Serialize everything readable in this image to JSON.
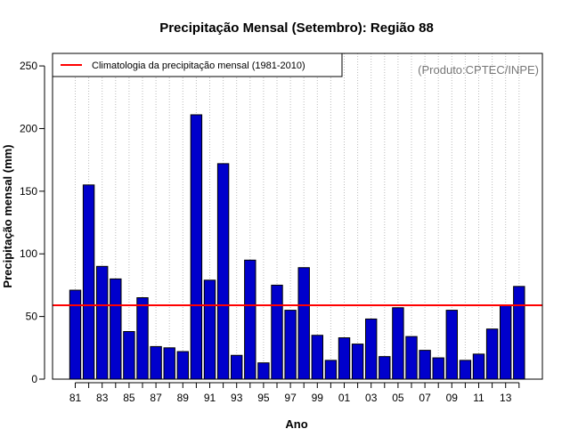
{
  "chart_data": {
    "type": "bar",
    "title": "Precipitação Mensal (Setembro): Região 88",
    "xlabel": "Ano",
    "ylabel": "Precipitação mensal (mm)",
    "ylim": [
      0,
      260
    ],
    "yticks": [
      0,
      50,
      100,
      150,
      200,
      250
    ],
    "categories": [
      "81",
      "82",
      "83",
      "84",
      "85",
      "86",
      "87",
      "88",
      "89",
      "90",
      "91",
      "92",
      "93",
      "94",
      "95",
      "96",
      "97",
      "98",
      "99",
      "00",
      "01",
      "02",
      "03",
      "04",
      "05",
      "06",
      "07",
      "08",
      "09",
      "10",
      "11",
      "12",
      "13",
      "14"
    ],
    "x_tick_labels": [
      "81",
      "83",
      "85",
      "87",
      "89",
      "91",
      "93",
      "95",
      "97",
      "99",
      "01",
      "03",
      "05",
      "07",
      "09",
      "11",
      "13"
    ],
    "values": [
      71,
      155,
      90,
      80,
      38,
      65,
      26,
      25,
      22,
      211,
      79,
      172,
      19,
      95,
      13,
      75,
      55,
      89,
      35,
      15,
      33,
      28,
      48,
      18,
      57,
      34,
      23,
      17,
      55,
      15,
      20,
      40,
      59,
      74
    ],
    "bar_color": "#0000cc",
    "climatology": {
      "value": 59,
      "label": "Climatologia da precipitação mensal (1981-2010)",
      "color": "#ff0000"
    },
    "grid": true,
    "legend_position": "top-left",
    "credit": "(Produto:CPTEC/INPE)"
  }
}
